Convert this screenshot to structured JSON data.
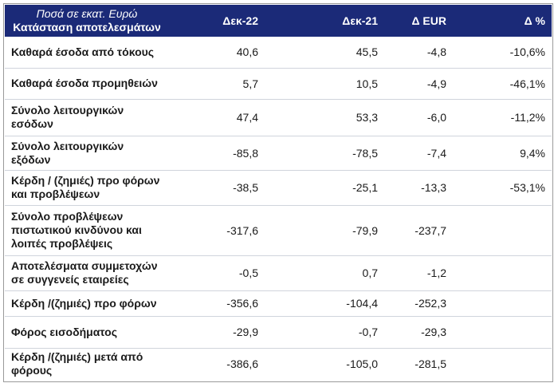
{
  "header": {
    "unit_note": "Ποσά σε εκατ. Ευρώ",
    "title": "Κατάσταση αποτελεσμάτων",
    "col_dec22": "Δεκ-22",
    "col_dec21": "Δεκ-21",
    "col_delta_eur": "Δ EUR",
    "col_delta_pct": "Δ %"
  },
  "rows": [
    {
      "label": "Καθαρά έσοδα από τόκους",
      "dec22": "40,6",
      "dec21": "45,5",
      "delta_eur": "-4,8",
      "delta_pct": "-10,6%"
    },
    {
      "label": "Καθαρά έσοδα προμηθειών",
      "dec22": "5,7",
      "dec21": "10,5",
      "delta_eur": "-4,9",
      "delta_pct": "-46,1%"
    },
    {
      "label": "Σύνολο λειτουργικών εσόδων",
      "dec22": "47,4",
      "dec21": "53,3",
      "delta_eur": "-6,0",
      "delta_pct": "-11,2%"
    },
    {
      "label": "Σύνολο λειτουργικών εξόδων",
      "dec22": "-85,8",
      "dec21": "-78,5",
      "delta_eur": "-7,4",
      "delta_pct": "9,4%"
    },
    {
      "label": "Κέρδη / (ζημιές) προ φόρων και προβλέψεων",
      "dec22": "-38,5",
      "dec21": "-25,1",
      "delta_eur": "-13,3",
      "delta_pct": "-53,1%"
    },
    {
      "label": "Σύνολο προβλέψεων πιστωτικού κινδύνου και λοιπές προβλέψεις",
      "dec22": "-317,6",
      "dec21": "-79,9",
      "delta_eur": "-237,7",
      "delta_pct": ""
    },
    {
      "label": "Αποτελέσματα συμμετοχών σε συγγενείς εταιρείες",
      "dec22": "-0,5",
      "dec21": "0,7",
      "delta_eur": "-1,2",
      "delta_pct": ""
    },
    {
      "label": "Κέρδη /(ζημιές) προ φόρων",
      "dec22": "-356,6",
      "dec21": "-104,4",
      "delta_eur": "-252,3",
      "delta_pct": ""
    },
    {
      "label": "Φόρος εισοδήματος",
      "dec22": "-29,9",
      "dec21": "-0,7",
      "delta_eur": "-29,3",
      "delta_pct": ""
    },
    {
      "label": "Κέρδη /(ζημιές) μετά από φόρους",
      "dec22": "-386,6",
      "dec21": "-105,0",
      "delta_eur": "-281,5",
      "delta_pct": ""
    }
  ]
}
